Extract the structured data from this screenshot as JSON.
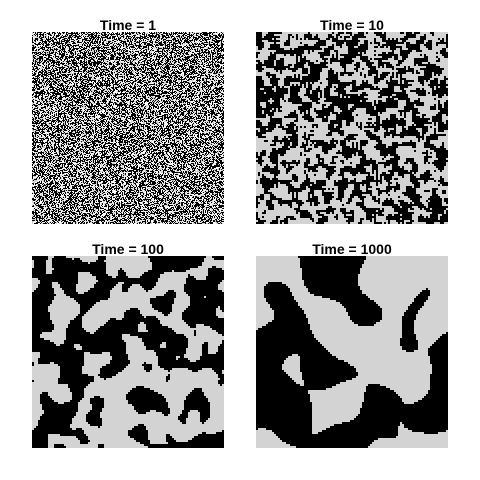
{
  "panels": [
    {
      "title": "Time = 1",
      "time": 1
    },
    {
      "title": "Time = 10",
      "time": 10
    },
    {
      "title": "Time = 100",
      "time": 100
    },
    {
      "title": "Time = 1000",
      "time": 1000
    }
  ],
  "colors": {
    "phase_a": "#000000",
    "phase_b": "#d3d3d3",
    "noise_light": "#ffffff"
  }
}
